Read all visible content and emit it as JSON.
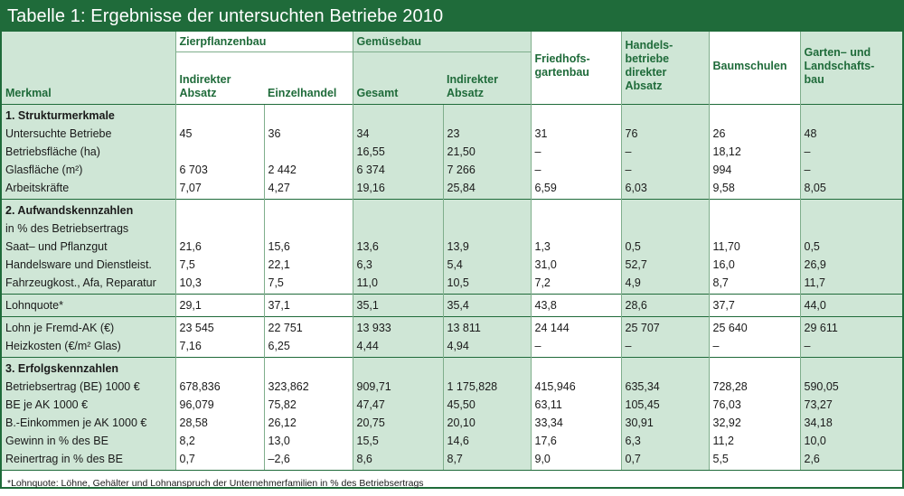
{
  "title": "Tabelle 1: Ergebnisse der untersuchten Betriebe 2010",
  "header": {
    "merkmal": "Merkmal",
    "group_zier": "Zierpflanzenbau",
    "group_gemuese": "Gemüsebau",
    "col_zier_indirekt": [
      "Indirekter",
      "Absatz"
    ],
    "col_zier_einzel": "Einzelhandel",
    "col_gem_gesamt": "Gesamt",
    "col_gem_indirekt": [
      "Indirekter",
      "Absatz"
    ],
    "col_friedhof": [
      "Friedhofs-",
      "gartenbau"
    ],
    "col_handel": [
      "Handels-",
      "betriebe",
      "direkter",
      "Absatz"
    ],
    "col_baumschulen": "Baumschulen",
    "col_galabau": [
      "Garten– und",
      "Landschafts-",
      "bau"
    ]
  },
  "sections": [
    {
      "rows": [
        {
          "label": "1. Strukturmerkmale",
          "bold": true,
          "values": [
            "",
            "",
            "",
            "",
            "",
            "",
            "",
            ""
          ]
        },
        {
          "label": "Untersuchte Betriebe",
          "values": [
            "45",
            "36",
            "34",
            "23",
            "31",
            "76",
            "26",
            "48"
          ]
        },
        {
          "label": "Betriebsfläche (ha)",
          "values": [
            "",
            "",
            "16,55",
            "21,50",
            "–",
            "–",
            "18,12",
            "–"
          ]
        },
        {
          "label": "Glasfläche (m²)",
          "values": [
            "6 703",
            "2 442",
            "6 374",
            "7 266",
            "–",
            "–",
            "994",
            "–"
          ]
        },
        {
          "label": "Arbeitskräfte",
          "values": [
            "7,07",
            "4,27",
            "19,16",
            "25,84",
            "6,59",
            "6,03",
            "9,58",
            "8,05"
          ]
        }
      ]
    },
    {
      "rows": [
        {
          "label": "2. Aufwandskennzahlen",
          "bold": true,
          "values": [
            "",
            "",
            "",
            "",
            "",
            "",
            "",
            ""
          ]
        },
        {
          "label": "in % des Betriebsertrags",
          "values": [
            "",
            "",
            "",
            "",
            "",
            "",
            "",
            ""
          ]
        },
        {
          "label": "Saat– und Pflanzgut",
          "values": [
            "21,6",
            "15,6",
            "13,6",
            "13,9",
            "1,3",
            "0,5",
            "11,70",
            "0,5"
          ]
        },
        {
          "label": "Handelsware und Dienstleist.",
          "values": [
            "7,5",
            "22,1",
            "6,3",
            "5,4",
            "31,0",
            "52,7",
            "16,0",
            "26,9"
          ]
        },
        {
          "label": "Fahrzeugkost., Afa, Reparatur",
          "values": [
            "10,3",
            "7,5",
            "11,0",
            "10,5",
            "7,2",
            "4,9",
            "8,7",
            "11,7"
          ]
        }
      ]
    },
    {
      "rows": [
        {
          "label": "Lohnquote*",
          "values": [
            "29,1",
            "37,1",
            "35,1",
            "35,4",
            "43,8",
            "28,6",
            "37,7",
            "44,0"
          ]
        }
      ]
    },
    {
      "rows": [
        {
          "label": "Lohn je Fremd-AK (€)",
          "values": [
            "23 545",
            "22 751",
            "13 933",
            "13 811",
            "24 144",
            "25 707",
            "25 640",
            "29 611"
          ]
        },
        {
          "label": "Heizkosten (€/m² Glas)",
          "values": [
            "7,16",
            "6,25",
            "4,44",
            "4,94",
            "–",
            "–",
            "–",
            "–"
          ]
        }
      ]
    },
    {
      "rows": [
        {
          "label": "3. Erfolgskennzahlen",
          "bold": true,
          "values": [
            "",
            "",
            "",
            "",
            "",
            "",
            "",
            ""
          ]
        },
        {
          "label": "Betriebsertrag (BE) 1000 €",
          "values": [
            "678,836",
            "323,862",
            "909,71",
            "1 175,828",
            "415,946",
            "635,34",
            "728,28",
            "590,05"
          ]
        },
        {
          "label": "BE je AK 1000 €",
          "values": [
            "96,079",
            "75,82",
            "47,47",
            "45,50",
            "63,11",
            "105,45",
            "76,03",
            "73,27"
          ]
        },
        {
          "label": "B.-Einkommen je AK 1000 €",
          "values": [
            "28,58",
            "26,12",
            "20,75",
            "20,10",
            "33,34",
            "30,91",
            "32,92",
            "34,18"
          ]
        },
        {
          "label": "Gewinn in % des BE",
          "values": [
            "8,2",
            "13,0",
            "15,5",
            "14,6",
            "17,6",
            "6,3",
            "11,2",
            "10,0"
          ]
        },
        {
          "label": "Reinertrag in % des BE",
          "values": [
            "0,7",
            "–2,6",
            "8,6",
            "8,7",
            "9,0",
            "0,7",
            "5,5",
            "2,6"
          ]
        }
      ]
    }
  ],
  "footnote": "*Lohnquote: Löhne, Gehälter und Lohnanspruch der Unternehmerfamilien in % des Betriebsertrags",
  "colors": {
    "accent": "#1f6b3a",
    "shade": "#cfe6d6"
  }
}
